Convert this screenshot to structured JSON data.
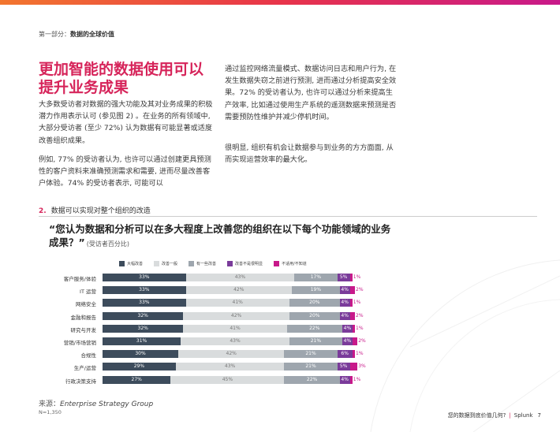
{
  "colors": {
    "major": "#3d4c5c",
    "moderate": "#d9dcdd",
    "little": "#9ea6ae",
    "none": "#7a3b9a",
    "na": "#c8198a",
    "accent": "#d6245a"
  },
  "header": {
    "section_label": "第一部分：",
    "section_title": "数据的全球价值"
  },
  "headline": "更加智能的数据使用可以提升业务成果",
  "paragraphs": [
    "大多数受访者对数据的强大功能及其对业务成果的积极潜力作用表示认可 (参见图 2) 。在业务的所有领域中, 大部分受访者 (至少 72%) 认为数据有可能显著或适度改善组织成果。",
    "例如, 77% 的受访者认为, 也许可以通过创建更具预测性的客户资料来准确预测需求和需要, 进而尽量改善客户体验。74% 的受访者表示, 可能可以",
    "通过监控网络流量模式、数据访问日志和用户行为, 在发生数据失窃之前进行预测, 进而通过分析提高安全效果。72% 的受访者认为, 也许可以通过分析来提高生产效率, 比如通过使用生产系统的遥测数据来预测是否需要预防性维护并减少停机时间。",
    "很明显, 组织有机会让数据参与到业务的方方面面, 从而实现运营效率的最大化。"
  ],
  "figure": {
    "number": "2.",
    "title": "数据可以实现对整个组织的改造",
    "question": "“您认为数据和分析可以在多大程度上改善您的组织在以下每个功能领域的业务成果？”",
    "unit": "(受访者百分比)"
  },
  "chart_data": {
    "type": "bar",
    "orientation": "horizontal",
    "stacked": true,
    "legend_position": "top",
    "categories": [
      "客户服务/体验",
      "IT 运营",
      "网络安全",
      "金融和报告",
      "研究与开发",
      "营销/市场营销",
      "合规性",
      "生产/运营",
      "行政决策支持"
    ],
    "series": [
      {
        "name": "大幅改善",
        "color": "#3d4c5c",
        "values": [
          33,
          33,
          33,
          32,
          32,
          31,
          30,
          29,
          27
        ]
      },
      {
        "name": "改善一般",
        "color": "#d9dcdd",
        "values": [
          43,
          42,
          41,
          42,
          41,
          43,
          42,
          43,
          45
        ]
      },
      {
        "name": "有一些改善",
        "color": "#9ea6ae",
        "values": [
          17,
          19,
          20,
          20,
          22,
          21,
          21,
          21,
          22
        ]
      },
      {
        "name": "改善不是很明显",
        "color": "#7a3b9a",
        "values": [
          5,
          4,
          4,
          4,
          4,
          4,
          6,
          5,
          4
        ]
      },
      {
        "name": "不适用/不知道",
        "color": "#c8198a",
        "values": [
          1,
          2,
          1,
          2,
          1,
          2,
          1,
          3,
          1
        ]
      }
    ]
  },
  "source": {
    "label": "来源：",
    "value": "Enterprise Strategy Group",
    "n": "N=1,350"
  },
  "footer": {
    "text": "您的数据到底价值几何?",
    "brand": "Splunk",
    "page": "7"
  }
}
